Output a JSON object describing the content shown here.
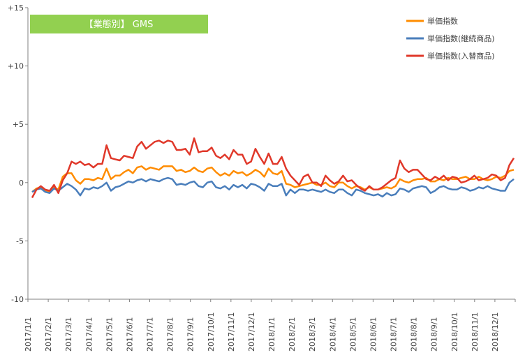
{
  "chart_data": {
    "type": "line",
    "banner": {
      "text": "【業態別】 GMS",
      "color": "#92d050"
    },
    "ylim": [
      -10,
      15
    ],
    "y_ticks": [
      15,
      10,
      5,
      0,
      -5,
      -10
    ],
    "y_tick_labels": [
      "+15",
      "+10",
      "+5",
      "0",
      "-5",
      "-10"
    ],
    "x_tick_labels": [
      "2017/1/1",
      "2017/2/1",
      "2017/3/1",
      "2017/4/1",
      "2017/5/1",
      "2017/6/1",
      "2017/7/1",
      "2017/8/1",
      "2017/9/1",
      "2017/10/1",
      "2017/11/1",
      "2017/12/1",
      "2018/1/1",
      "2018/2/1",
      "2018/3/1",
      "2018/4/1",
      "2018/5/1",
      "2018/6/1",
      "2018/7/1",
      "2018/8/1",
      "2018/9/1",
      "2018/10/1",
      "2018/11/1",
      "2018/12/1"
    ],
    "legend_position": "top-right",
    "grid": false,
    "x_unit": "week",
    "series": [
      {
        "name": "単価指数",
        "color": "#ff8c00",
        "values": [
          -0.8,
          -0.5,
          -0.4,
          -0.7,
          -0.8,
          -0.4,
          -0.6,
          0.5,
          0.8,
          0.8,
          0.2,
          -0.1,
          0.3,
          0.3,
          0.2,
          0.4,
          0.3,
          1.2,
          0.3,
          0.6,
          0.6,
          0.9,
          1.1,
          0.8,
          1.3,
          1.4,
          1.1,
          1.3,
          1.2,
          1.1,
          1.4,
          1.4,
          1.4,
          1.0,
          1.1,
          0.9,
          1.0,
          1.3,
          1.0,
          0.9,
          1.2,
          1.3,
          0.9,
          0.6,
          0.8,
          0.6,
          1.0,
          0.8,
          0.9,
          0.6,
          0.8,
          1.1,
          0.9,
          0.5,
          1.2,
          0.8,
          0.7,
          1.0,
          -0.1,
          -0.2,
          -0.4,
          -0.3,
          -0.2,
          -0.1,
          0.0,
          -0.2,
          -0.2,
          0.0,
          -0.3,
          -0.4,
          0.0,
          0.0,
          -0.3,
          -0.5,
          -0.3,
          -0.4,
          -0.6,
          -0.4,
          -0.6,
          -0.6,
          -0.5,
          -0.4,
          -0.5,
          -0.3,
          0.3,
          0.1,
          0.0,
          0.2,
          0.3,
          0.3,
          0.4,
          0.1,
          0.1,
          0.3,
          0.2,
          0.4,
          0.3,
          0.3,
          0.4,
          0.5,
          0.3,
          0.3,
          0.5,
          0.3,
          0.2,
          0.3,
          0.5,
          0.4,
          0.6,
          1.0,
          1.1
        ]
      },
      {
        "name": "単価指数(継続商品)",
        "color": "#4a7ebb",
        "values": [
          -0.8,
          -0.6,
          -0.5,
          -0.8,
          -0.9,
          -0.5,
          -0.7,
          -0.4,
          -0.1,
          -0.3,
          -0.6,
          -1.1,
          -0.5,
          -0.6,
          -0.4,
          -0.5,
          -0.3,
          0.0,
          -0.7,
          -0.4,
          -0.3,
          -0.1,
          0.1,
          0.0,
          0.2,
          0.3,
          0.1,
          0.3,
          0.2,
          0.1,
          0.3,
          0.4,
          0.3,
          -0.2,
          -0.1,
          -0.2,
          0.0,
          0.1,
          -0.3,
          -0.4,
          0.0,
          0.1,
          -0.4,
          -0.5,
          -0.3,
          -0.6,
          -0.2,
          -0.4,
          -0.2,
          -0.5,
          -0.1,
          -0.2,
          -0.4,
          -0.7,
          -0.1,
          -0.3,
          -0.3,
          -0.1,
          -1.1,
          -0.6,
          -0.9,
          -0.6,
          -0.6,
          -0.7,
          -0.6,
          -0.7,
          -0.8,
          -0.6,
          -0.8,
          -0.9,
          -0.6,
          -0.6,
          -0.9,
          -1.1,
          -0.6,
          -0.7,
          -0.9,
          -1.0,
          -1.1,
          -1.0,
          -1.2,
          -0.9,
          -1.1,
          -1.0,
          -0.5,
          -0.6,
          -0.8,
          -0.5,
          -0.4,
          -0.3,
          -0.4,
          -0.9,
          -0.7,
          -0.4,
          -0.3,
          -0.5,
          -0.6,
          -0.6,
          -0.4,
          -0.5,
          -0.7,
          -0.6,
          -0.4,
          -0.5,
          -0.3,
          -0.5,
          -0.6,
          -0.7,
          -0.7,
          0.0,
          0.3
        ]
      },
      {
        "name": "単価指数(入替商品)",
        "color": "#e0382a",
        "values": [
          -1.3,
          -0.6,
          -0.3,
          -0.6,
          -0.7,
          -0.2,
          -0.9,
          0.2,
          0.8,
          1.8,
          1.6,
          1.8,
          1.5,
          1.6,
          1.3,
          1.6,
          1.6,
          3.2,
          2.1,
          2.0,
          1.9,
          2.3,
          2.2,
          2.1,
          3.1,
          3.5,
          2.9,
          3.2,
          3.5,
          3.6,
          3.4,
          3.6,
          3.5,
          2.8,
          2.8,
          2.9,
          2.4,
          3.8,
          2.6,
          2.7,
          2.7,
          3.0,
          2.3,
          2.1,
          2.4,
          2.0,
          2.8,
          2.4,
          2.4,
          1.6,
          1.8,
          2.9,
          2.2,
          1.6,
          2.5,
          1.6,
          1.6,
          2.2,
          1.2,
          0.6,
          0.2,
          -0.2,
          0.5,
          0.7,
          0.0,
          0.0,
          -0.3,
          0.6,
          0.2,
          -0.1,
          0.1,
          0.6,
          0.1,
          0.2,
          -0.2,
          -0.5,
          -0.7,
          -0.3,
          -0.6,
          -0.6,
          -0.4,
          -0.1,
          0.2,
          0.4,
          1.9,
          1.2,
          0.9,
          1.1,
          1.1,
          0.7,
          0.3,
          0.2,
          0.5,
          0.3,
          0.6,
          0.2,
          0.5,
          0.4,
          0.0,
          0.1,
          0.3,
          0.6,
          0.2,
          0.3,
          0.4,
          0.7,
          0.6,
          0.2,
          0.4,
          1.5,
          2.1
        ]
      }
    ]
  }
}
